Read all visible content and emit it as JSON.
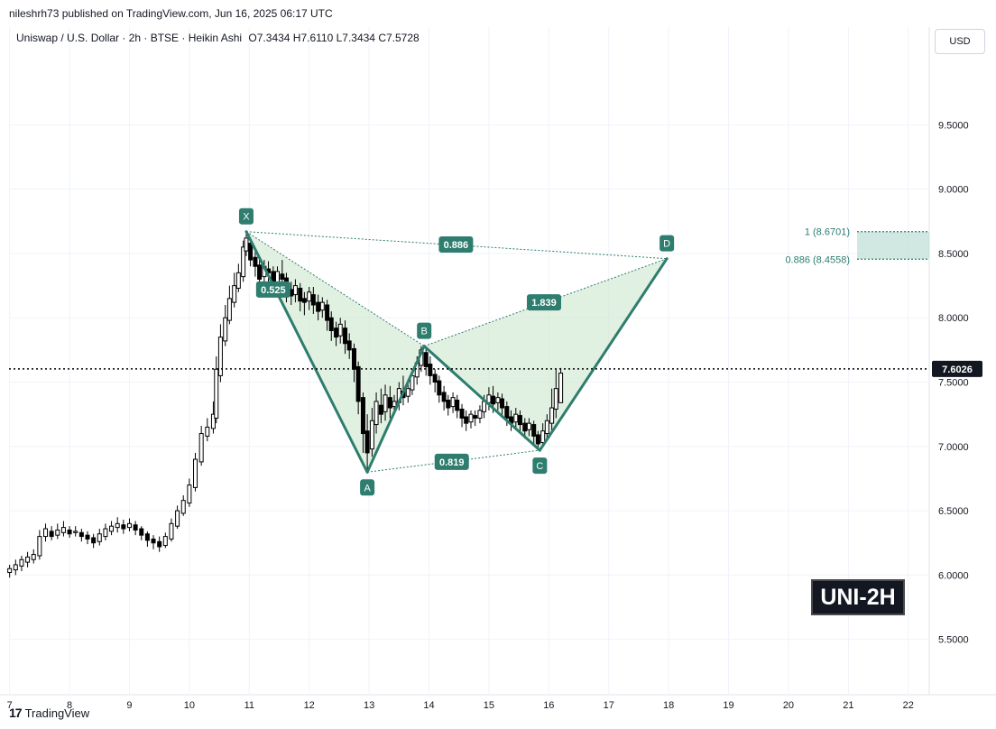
{
  "header": {
    "publisher": "nileshrh73 published on TradingView.com, Jun 16, 2025 06:17 UTC",
    "symbol": "Uniswap / U.S. Dollar · 2h · BTSE · Heikin Ashi",
    "ohlc": "O7.3434  H7.6110  L7.3434  C7.5728",
    "currency": "USD"
  },
  "footer": {
    "logo_mark": "17",
    "brand": "TradingView"
  },
  "badge": "UNI-2H",
  "chart_data": {
    "type": "candlestick",
    "y_range": [
      5.28,
      10.05
    ],
    "y_ticks": [
      "9.5000",
      "9.0000",
      "8.5000",
      "8.0000",
      "7.5000",
      "7.0000",
      "6.5000",
      "6.0000",
      "5.5000"
    ],
    "y_tick_values": [
      9.5,
      9.0,
      8.5,
      8.0,
      7.5,
      7.0,
      6.5,
      6.0,
      5.5
    ],
    "x_ticks": [
      "7",
      "8",
      "9",
      "10",
      "11",
      "12",
      "13",
      "14",
      "15",
      "16",
      "17",
      "18",
      "19",
      "20",
      "21",
      "22"
    ],
    "x_range": [
      6.99,
      22.35
    ],
    "current_price": 7.6026,
    "current_price_label": "7.6026",
    "pattern": {
      "points": [
        {
          "label": "X",
          "day": 10.95,
          "price": 8.67
        },
        {
          "label": "A",
          "day": 12.97,
          "price": 6.8
        },
        {
          "label": "B",
          "day": 13.92,
          "price": 7.78
        },
        {
          "label": "C",
          "day": 15.85,
          "price": 6.97
        },
        {
          "label": "D",
          "day": 17.97,
          "price": 8.46
        }
      ],
      "ratios": [
        {
          "text": "0.525",
          "day": 11.4,
          "price": 8.22
        },
        {
          "text": "0.886",
          "day": 14.45,
          "price": 8.57
        },
        {
          "text": "1.839",
          "day": 15.92,
          "price": 8.12
        },
        {
          "text": "0.819",
          "day": 14.38,
          "price": 6.88
        }
      ],
      "color": "#2e7d6e",
      "fill": "#c8e6c9"
    },
    "fib_levels": [
      {
        "label": "1 (8.6701)",
        "value": 8.6701
      },
      {
        "label": "0.886 (8.4558)",
        "value": 8.4558
      }
    ],
    "candles": [
      [
        7.0,
        6.02,
        6.05,
        5.98,
        6.08
      ],
      [
        7.1,
        6.04,
        6.08,
        6.0,
        6.12
      ],
      [
        7.2,
        6.07,
        6.12,
        6.03,
        6.15
      ],
      [
        7.3,
        6.1,
        6.14,
        6.06,
        6.18
      ],
      [
        7.4,
        6.12,
        6.16,
        6.09,
        6.2
      ],
      [
        7.5,
        6.15,
        6.3,
        6.12,
        6.35
      ],
      [
        7.6,
        6.3,
        6.36,
        6.26,
        6.4
      ],
      [
        7.7,
        6.34,
        6.3,
        6.27,
        6.38
      ],
      [
        7.8,
        6.31,
        6.35,
        6.28,
        6.4
      ],
      [
        7.9,
        6.33,
        6.37,
        6.3,
        6.42
      ],
      [
        8.0,
        6.35,
        6.32,
        6.29,
        6.38
      ],
      [
        8.1,
        6.33,
        6.34,
        6.3,
        6.38
      ],
      [
        8.2,
        6.33,
        6.3,
        6.26,
        6.36
      ],
      [
        8.3,
        6.31,
        6.28,
        6.24,
        6.34
      ],
      [
        8.4,
        6.29,
        6.25,
        6.21,
        6.32
      ],
      [
        8.5,
        6.26,
        6.32,
        6.23,
        6.36
      ],
      [
        8.6,
        6.3,
        6.36,
        6.27,
        6.4
      ],
      [
        8.7,
        6.34,
        6.38,
        6.31,
        6.42
      ],
      [
        8.8,
        6.37,
        6.4,
        6.33,
        6.45
      ],
      [
        8.9,
        6.39,
        6.36,
        6.32,
        6.43
      ],
      [
        9.0,
        6.37,
        6.4,
        6.34,
        6.44
      ],
      [
        9.1,
        6.39,
        6.35,
        6.31,
        6.42
      ],
      [
        9.2,
        6.36,
        6.31,
        6.27,
        6.38
      ],
      [
        9.3,
        6.32,
        6.27,
        6.22,
        6.34
      ],
      [
        9.4,
        6.28,
        6.25,
        6.2,
        6.31
      ],
      [
        9.5,
        6.26,
        6.22,
        6.18,
        6.3
      ],
      [
        9.6,
        6.23,
        6.3,
        6.21,
        6.33
      ],
      [
        9.7,
        6.28,
        6.4,
        6.26,
        6.44
      ],
      [
        9.8,
        6.38,
        6.5,
        6.36,
        6.54
      ],
      [
        9.9,
        6.48,
        6.58,
        6.46,
        6.62
      ],
      [
        10.0,
        6.56,
        6.7,
        6.53,
        6.75
      ],
      [
        10.1,
        6.68,
        6.9,
        6.65,
        6.95
      ],
      [
        10.2,
        6.88,
        7.1,
        6.85,
        7.16
      ],
      [
        10.3,
        7.08,
        7.15,
        7.04,
        7.22
      ],
      [
        10.4,
        7.14,
        7.25,
        7.1,
        7.35
      ],
      [
        10.45,
        7.22,
        7.6,
        7.18,
        7.7
      ],
      [
        10.52,
        7.55,
        7.85,
        7.5,
        7.95
      ],
      [
        10.6,
        7.82,
        8.0,
        7.78,
        8.1
      ],
      [
        10.67,
        7.98,
        8.15,
        7.95,
        8.25
      ],
      [
        10.75,
        8.12,
        8.25,
        8.08,
        8.35
      ],
      [
        10.82,
        8.23,
        8.35,
        8.2,
        8.42
      ],
      [
        10.9,
        8.32,
        8.55,
        8.28,
        8.6
      ],
      [
        10.95,
        8.52,
        8.62,
        8.48,
        8.67
      ],
      [
        11.02,
        8.58,
        8.45,
        8.4,
        8.62
      ],
      [
        11.1,
        8.47,
        8.4,
        8.32,
        8.52
      ],
      [
        11.17,
        8.41,
        8.3,
        8.24,
        8.46
      ],
      [
        11.25,
        8.32,
        8.4,
        8.28,
        8.45
      ],
      [
        11.32,
        8.38,
        8.35,
        8.25,
        8.44
      ],
      [
        11.4,
        8.36,
        8.25,
        8.17,
        8.4
      ],
      [
        11.47,
        8.27,
        8.36,
        8.22,
        8.4
      ],
      [
        11.55,
        8.34,
        8.3,
        8.22,
        8.45
      ],
      [
        11.62,
        8.31,
        8.2,
        8.12,
        8.35
      ],
      [
        11.7,
        8.22,
        8.17,
        8.1,
        8.28
      ],
      [
        11.77,
        8.18,
        8.25,
        8.12,
        8.3
      ],
      [
        11.85,
        8.23,
        8.13,
        8.05,
        8.27
      ],
      [
        11.92,
        8.15,
        8.12,
        8.02,
        8.2
      ],
      [
        12.0,
        8.13,
        8.2,
        8.06,
        8.24
      ],
      [
        12.07,
        8.18,
        8.1,
        8.03,
        8.24
      ],
      [
        12.15,
        8.12,
        8.05,
        7.98,
        8.18
      ],
      [
        12.22,
        8.06,
        8.12,
        8.0,
        8.16
      ],
      [
        12.3,
        8.1,
        7.98,
        7.9,
        8.14
      ],
      [
        12.37,
        8.0,
        7.9,
        7.82,
        8.05
      ],
      [
        12.45,
        7.92,
        7.85,
        7.78,
        7.97
      ],
      [
        12.52,
        7.86,
        7.95,
        7.8,
        8.0
      ],
      [
        12.6,
        7.92,
        7.8,
        7.72,
        7.98
      ],
      [
        12.67,
        7.82,
        7.75,
        7.68,
        7.88
      ],
      [
        12.75,
        7.76,
        7.6,
        7.5,
        7.8
      ],
      [
        12.82,
        7.62,
        7.35,
        7.25,
        7.66
      ],
      [
        12.9,
        7.38,
        7.1,
        6.95,
        7.42
      ],
      [
        12.97,
        7.12,
        6.95,
        6.8,
        7.25
      ],
      [
        13.05,
        6.98,
        7.2,
        6.92,
        7.3
      ],
      [
        13.12,
        7.17,
        7.35,
        7.1,
        7.42
      ],
      [
        13.2,
        7.32,
        7.25,
        7.18,
        7.45
      ],
      [
        13.27,
        7.27,
        7.4,
        7.2,
        7.48
      ],
      [
        13.35,
        7.38,
        7.3,
        7.22,
        7.47
      ],
      [
        13.42,
        7.31,
        7.35,
        7.25,
        7.4
      ],
      [
        13.5,
        7.34,
        7.45,
        7.28,
        7.5
      ],
      [
        13.57,
        7.43,
        7.38,
        7.32,
        7.55
      ],
      [
        13.65,
        7.39,
        7.45,
        7.34,
        7.52
      ],
      [
        13.72,
        7.44,
        7.55,
        7.4,
        7.6
      ],
      [
        13.8,
        7.54,
        7.65,
        7.48,
        7.7
      ],
      [
        13.87,
        7.63,
        7.75,
        7.58,
        7.78
      ],
      [
        13.95,
        7.73,
        7.62,
        7.55,
        7.76
      ],
      [
        14.02,
        7.64,
        7.55,
        7.48,
        7.7
      ],
      [
        14.1,
        7.56,
        7.5,
        7.42,
        7.6
      ],
      [
        14.17,
        7.51,
        7.4,
        7.34,
        7.55
      ],
      [
        14.25,
        7.42,
        7.35,
        7.28,
        7.47
      ],
      [
        14.32,
        7.36,
        7.3,
        7.24,
        7.4
      ],
      [
        14.4,
        7.31,
        7.38,
        7.26,
        7.42
      ],
      [
        14.47,
        7.36,
        7.28,
        7.22,
        7.4
      ],
      [
        14.55,
        7.29,
        7.22,
        7.15,
        7.33
      ],
      [
        14.62,
        7.23,
        7.18,
        7.12,
        7.28
      ],
      [
        14.7,
        7.19,
        7.25,
        7.14,
        7.28
      ],
      [
        14.77,
        7.24,
        7.22,
        7.16,
        7.28
      ],
      [
        14.85,
        7.22,
        7.28,
        7.18,
        7.32
      ],
      [
        14.92,
        7.27,
        7.35,
        7.22,
        7.4
      ],
      [
        15.0,
        7.34,
        7.4,
        7.28,
        7.46
      ],
      [
        15.07,
        7.39,
        7.33,
        7.26,
        7.47
      ],
      [
        15.15,
        7.34,
        7.38,
        7.28,
        7.42
      ],
      [
        15.22,
        7.37,
        7.3,
        7.24,
        7.41
      ],
      [
        15.3,
        7.31,
        7.22,
        7.16,
        7.35
      ],
      [
        15.37,
        7.23,
        7.18,
        7.12,
        7.28
      ],
      [
        15.45,
        7.19,
        7.25,
        7.14,
        7.3
      ],
      [
        15.52,
        7.24,
        7.17,
        7.1,
        7.28
      ],
      [
        15.6,
        7.18,
        7.12,
        7.06,
        7.22
      ],
      [
        15.67,
        7.13,
        7.18,
        7.08,
        7.22
      ],
      [
        15.75,
        7.17,
        7.08,
        7.02,
        7.2
      ],
      [
        15.82,
        7.09,
        7.02,
        6.97,
        7.12
      ],
      [
        15.9,
        7.03,
        7.12,
        7.0,
        7.18
      ],
      [
        15.97,
        7.1,
        7.2,
        7.05,
        7.25
      ],
      [
        16.05,
        7.18,
        7.3,
        7.12,
        7.45
      ],
      [
        16.12,
        7.29,
        7.45,
        7.22,
        7.6
      ],
      [
        16.2,
        7.34,
        7.57,
        7.34,
        7.61
      ]
    ]
  }
}
